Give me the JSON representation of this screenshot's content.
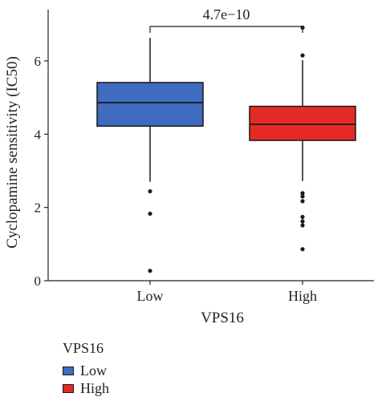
{
  "chart_data": {
    "type": "box",
    "xlabel": "VPS16",
    "ylabel": "Cyclopamine sensitivity (IC50)",
    "ylim": [
      0,
      7.4
    ],
    "yticks": [
      0,
      2,
      4,
      6
    ],
    "grid": false,
    "categories": [
      "Low",
      "High"
    ],
    "boxes": [
      {
        "category": "Low",
        "color": "#3f6cbf",
        "q1": 4.22,
        "median": 4.86,
        "q3": 5.41,
        "whisker_low": 2.7,
        "whisker_high": 6.63,
        "outliers": [
          2.44,
          1.83,
          0.27
        ]
      },
      {
        "category": "High",
        "color": "#e52a25",
        "q1": 3.83,
        "median": 4.27,
        "q3": 4.76,
        "whisker_low": 2.72,
        "whisker_high": 6.02,
        "outliers": [
          6.91,
          6.15,
          2.39,
          2.3,
          2.17,
          1.74,
          1.62,
          1.51,
          0.86
        ]
      }
    ],
    "comparison": {
      "between": [
        "Low",
        "High"
      ],
      "label": "4.7e−10"
    },
    "legend": {
      "title": "VPS16",
      "placement": "bottom-left",
      "entries": [
        "Low",
        "High"
      ]
    }
  }
}
